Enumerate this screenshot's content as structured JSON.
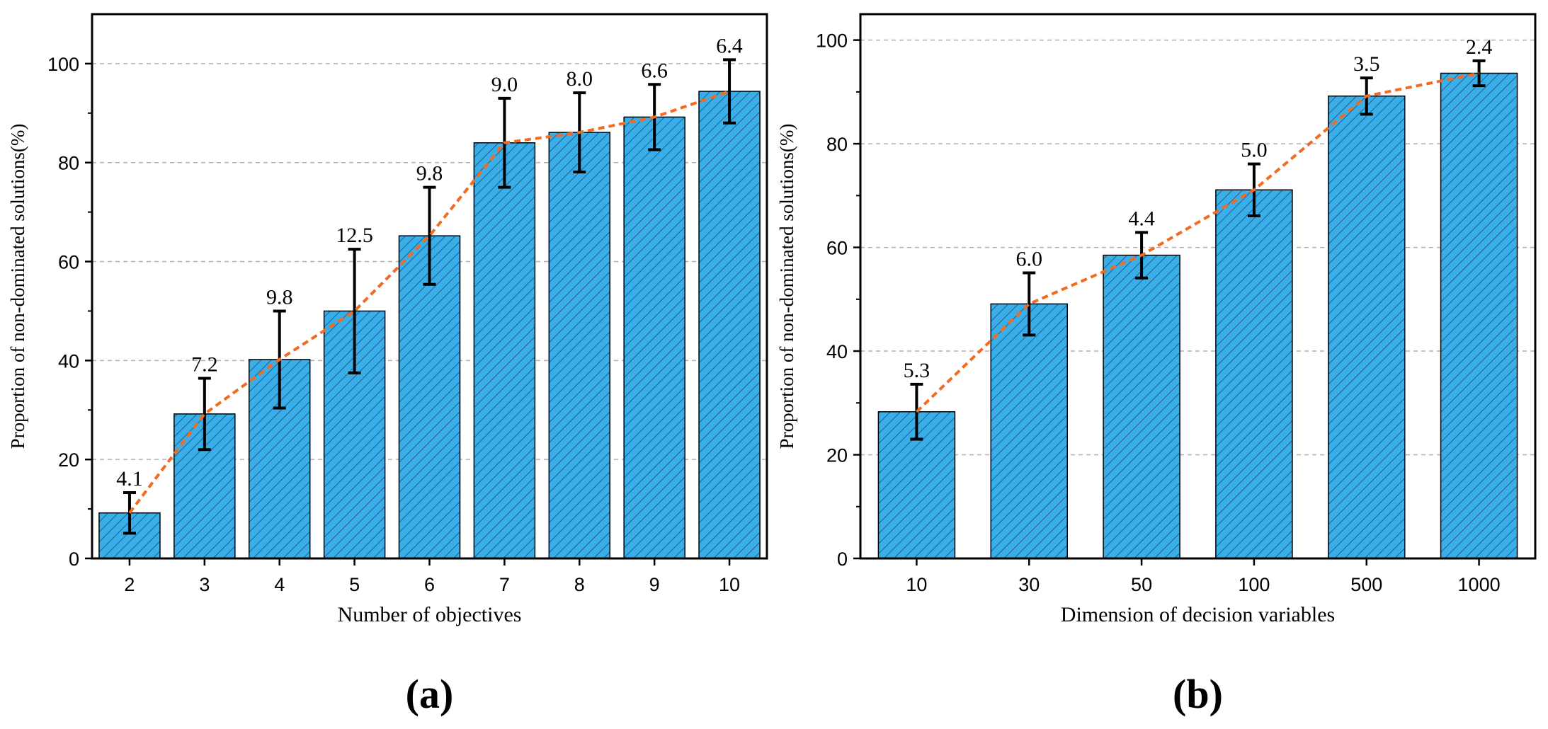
{
  "colors": {
    "bar_fill": "#3aaee8",
    "hatch": "#1c5f8e",
    "trend": "#f26b21",
    "error_bar": "#000000",
    "grid": "#b0b0b0",
    "axis": "#000000"
  },
  "chart_data": [
    {
      "type": "bar",
      "panel_label": "(a)",
      "title": "",
      "xlabel": "Number of objectives",
      "ylabel": "Proportion of non-dominated solutions(%)",
      "categories": [
        "2",
        "3",
        "4",
        "5",
        "6",
        "7",
        "8",
        "9",
        "10"
      ],
      "values": [
        9.2,
        29.2,
        40.2,
        50.0,
        65.2,
        84.0,
        86.1,
        89.2,
        94.4
      ],
      "errors": [
        4.1,
        7.2,
        9.8,
        12.5,
        9.8,
        9.0,
        8.0,
        6.6,
        6.4
      ],
      "data_labels": [
        "4.1",
        "7.2",
        "9.8",
        "12.5",
        "9.8",
        "9.0",
        "8.0",
        "6.6",
        "6.4"
      ],
      "ylim": [
        0,
        110
      ],
      "yticks": [
        0,
        20,
        40,
        60,
        80,
        100
      ],
      "grid": true,
      "trend_line": true
    },
    {
      "type": "bar",
      "panel_label": "(b)",
      "title": "",
      "xlabel": "Dimension of decision variables",
      "ylabel": "Proportion  of non-dominated solutions(%)",
      "categories": [
        "10",
        "30",
        "50",
        "100",
        "500",
        "1000"
      ],
      "values": [
        28.3,
        49.1,
        58.5,
        71.1,
        89.2,
        93.6
      ],
      "errors": [
        5.3,
        6.0,
        4.4,
        5.0,
        3.5,
        2.4
      ],
      "data_labels": [
        "5.3",
        "6.0",
        "4.4",
        "5.0",
        "3.5",
        "2.4"
      ],
      "ylim": [
        0,
        105
      ],
      "yticks": [
        0,
        20,
        40,
        60,
        80,
        100
      ],
      "grid": true,
      "trend_line": true
    }
  ]
}
